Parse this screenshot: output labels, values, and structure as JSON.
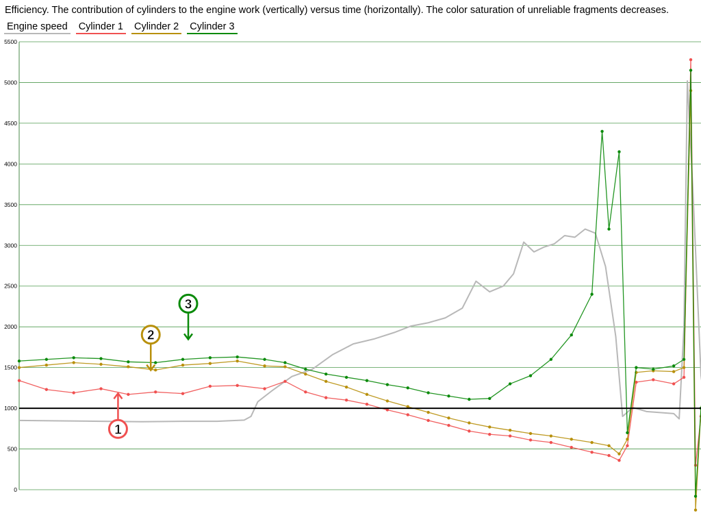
{
  "title": "Efficiency. The contribution of cylinders to the engine work (vertically) versus time (horizontally). The color saturation of unreliable fragments decreases.",
  "legend": [
    {
      "label": "Engine speed",
      "color": "#b8b8b8"
    },
    {
      "label": "Cylinder 1",
      "color": "#f05050"
    },
    {
      "label": "Cylinder 2",
      "color": "#b8900c"
    },
    {
      "label": "Cylinder 3",
      "color": "#0a8a0a"
    }
  ],
  "chart_data": {
    "type": "line",
    "title": "Efficiency. The contribution of cylinders to the engine work (vertically) versus time (horizontally). The color saturation of unreliable fragments decreases.",
    "ylim": [
      0,
      5500
    ],
    "yticks": [
      0,
      500,
      1000,
      1500,
      2000,
      2500,
      3000,
      3500,
      4000,
      4500,
      5000,
      5500
    ],
    "xlim": [
      0,
      1000
    ],
    "reference_line": 1000,
    "grid": true,
    "legend_position": "top-left",
    "series": [
      {
        "name": "Engine speed",
        "color": "#b8b8b8",
        "points": [
          [
            0,
            850
          ],
          [
            60,
            845
          ],
          [
            120,
            840
          ],
          [
            180,
            835
          ],
          [
            240,
            840
          ],
          [
            290,
            840
          ],
          [
            330,
            855
          ],
          [
            340,
            900
          ],
          [
            350,
            1080
          ],
          [
            370,
            1210
          ],
          [
            400,
            1390
          ],
          [
            430,
            1480
          ],
          [
            460,
            1660
          ],
          [
            490,
            1790
          ],
          [
            520,
            1850
          ],
          [
            550,
            1930
          ],
          [
            575,
            2010
          ],
          [
            600,
            2050
          ],
          [
            625,
            2110
          ],
          [
            650,
            2230
          ],
          [
            670,
            2560
          ],
          [
            690,
            2430
          ],
          [
            710,
            2500
          ],
          [
            725,
            2650
          ],
          [
            740,
            3040
          ],
          [
            755,
            2920
          ],
          [
            770,
            2980
          ],
          [
            785,
            3020
          ],
          [
            800,
            3120
          ],
          [
            815,
            3100
          ],
          [
            830,
            3200
          ],
          [
            845,
            3150
          ],
          [
            860,
            2740
          ],
          [
            875,
            1880
          ],
          [
            885,
            900
          ],
          [
            900,
            1010
          ],
          [
            920,
            960
          ],
          [
            960,
            935
          ],
          [
            968,
            870
          ],
          [
            975,
            2000
          ],
          [
            980,
            5020
          ],
          [
            988,
            3700
          ],
          [
            1000,
            1400
          ],
          [
            1020,
            200
          ]
        ]
      },
      {
        "name": "Cylinder 1",
        "color": "#f05050",
        "points": [
          [
            0,
            1340
          ],
          [
            40,
            1230
          ],
          [
            80,
            1190
          ],
          [
            120,
            1240
          ],
          [
            160,
            1170
          ],
          [
            200,
            1200
          ],
          [
            240,
            1180
          ],
          [
            280,
            1270
          ],
          [
            320,
            1280
          ],
          [
            360,
            1240
          ],
          [
            390,
            1330
          ],
          [
            420,
            1200
          ],
          [
            450,
            1130
          ],
          [
            480,
            1100
          ],
          [
            510,
            1050
          ],
          [
            540,
            980
          ],
          [
            570,
            920
          ],
          [
            600,
            850
          ],
          [
            630,
            790
          ],
          [
            660,
            720
          ],
          [
            690,
            680
          ],
          [
            720,
            660
          ],
          [
            750,
            610
          ],
          [
            780,
            580
          ],
          [
            810,
            520
          ],
          [
            840,
            460
          ],
          [
            865,
            420
          ],
          [
            880,
            360
          ],
          [
            892,
            540
          ],
          [
            905,
            1320
          ],
          [
            930,
            1350
          ],
          [
            960,
            1300
          ],
          [
            975,
            1380
          ],
          [
            985,
            5280
          ],
          [
            992,
            300
          ],
          [
            1000,
            900
          ],
          [
            1012,
            1700
          ]
        ]
      },
      {
        "name": "Cylinder 2",
        "color": "#b8900c",
        "points": [
          [
            0,
            1500
          ],
          [
            40,
            1530
          ],
          [
            80,
            1560
          ],
          [
            120,
            1540
          ],
          [
            160,
            1510
          ],
          [
            200,
            1470
          ],
          [
            240,
            1530
          ],
          [
            280,
            1550
          ],
          [
            320,
            1580
          ],
          [
            360,
            1520
          ],
          [
            390,
            1510
          ],
          [
            420,
            1420
          ],
          [
            450,
            1330
          ],
          [
            480,
            1260
          ],
          [
            510,
            1170
          ],
          [
            540,
            1090
          ],
          [
            570,
            1020
          ],
          [
            600,
            950
          ],
          [
            630,
            880
          ],
          [
            660,
            820
          ],
          [
            690,
            770
          ],
          [
            720,
            730
          ],
          [
            750,
            690
          ],
          [
            780,
            660
          ],
          [
            810,
            620
          ],
          [
            840,
            580
          ],
          [
            865,
            540
          ],
          [
            880,
            440
          ],
          [
            892,
            620
          ],
          [
            905,
            1440
          ],
          [
            930,
            1460
          ],
          [
            960,
            1450
          ],
          [
            975,
            1500
          ],
          [
            985,
            4900
          ],
          [
            992,
            -250
          ],
          [
            1000,
            1000
          ],
          [
            1012,
            1720
          ]
        ]
      },
      {
        "name": "Cylinder 3",
        "color": "#0a8a0a",
        "points": [
          [
            0,
            1580
          ],
          [
            40,
            1600
          ],
          [
            80,
            1620
          ],
          [
            120,
            1610
          ],
          [
            160,
            1570
          ],
          [
            200,
            1560
          ],
          [
            240,
            1600
          ],
          [
            280,
            1620
          ],
          [
            320,
            1630
          ],
          [
            360,
            1600
          ],
          [
            390,
            1560
          ],
          [
            420,
            1480
          ],
          [
            450,
            1420
          ],
          [
            480,
            1380
          ],
          [
            510,
            1340
          ],
          [
            540,
            1290
          ],
          [
            570,
            1250
          ],
          [
            600,
            1190
          ],
          [
            630,
            1150
          ],
          [
            660,
            1110
          ],
          [
            690,
            1120
          ],
          [
            720,
            1300
          ],
          [
            750,
            1400
          ],
          [
            780,
            1600
          ],
          [
            810,
            1900
          ],
          [
            840,
            2400
          ],
          [
            855,
            4400
          ],
          [
            865,
            3200
          ],
          [
            880,
            4150
          ],
          [
            892,
            700
          ],
          [
            905,
            1500
          ],
          [
            930,
            1480
          ],
          [
            960,
            1520
          ],
          [
            975,
            1600
          ],
          [
            985,
            5150
          ],
          [
            992,
            -80
          ],
          [
            1000,
            1000
          ],
          [
            1012,
            1700
          ]
        ]
      }
    ],
    "annotations": [
      {
        "label": "1",
        "series": "Cylinder 1",
        "x": 145,
        "y": 1200,
        "color": "#f05050"
      },
      {
        "label": "2",
        "series": "Cylinder 2",
        "x": 193,
        "y": 1450,
        "color": "#b8900c"
      },
      {
        "label": "3",
        "series": "Cylinder 3",
        "x": 248,
        "y": 1830,
        "color": "#0a8a0a"
      }
    ]
  }
}
